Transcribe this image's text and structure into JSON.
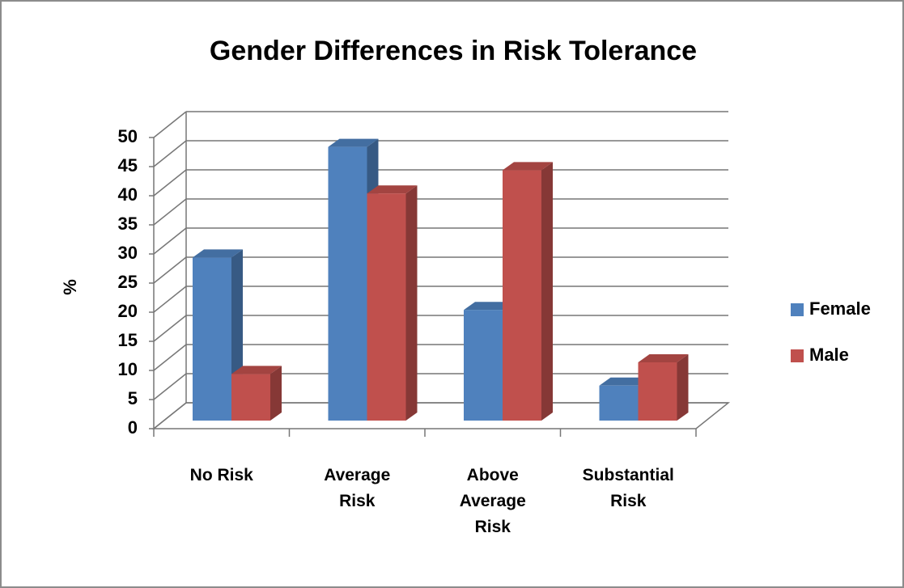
{
  "chart_data": {
    "type": "bar3d",
    "title": "Gender Differences in Risk Tolerance",
    "y_label": "%",
    "categories": [
      "No Risk",
      "Average Risk",
      "Above Average Risk",
      "Substantial Risk"
    ],
    "series": [
      {
        "name": "Female",
        "color": "#4f81bd",
        "values": [
          28,
          47,
          19,
          6
        ]
      },
      {
        "name": "Male",
        "color": "#c0504d",
        "values": [
          8,
          39,
          43,
          10
        ]
      }
    ],
    "ylim": [
      0,
      50
    ],
    "yticks": [
      0,
      5,
      10,
      15,
      20,
      25,
      30,
      35,
      40,
      45,
      50
    ],
    "grid": true,
    "legend": "right"
  }
}
